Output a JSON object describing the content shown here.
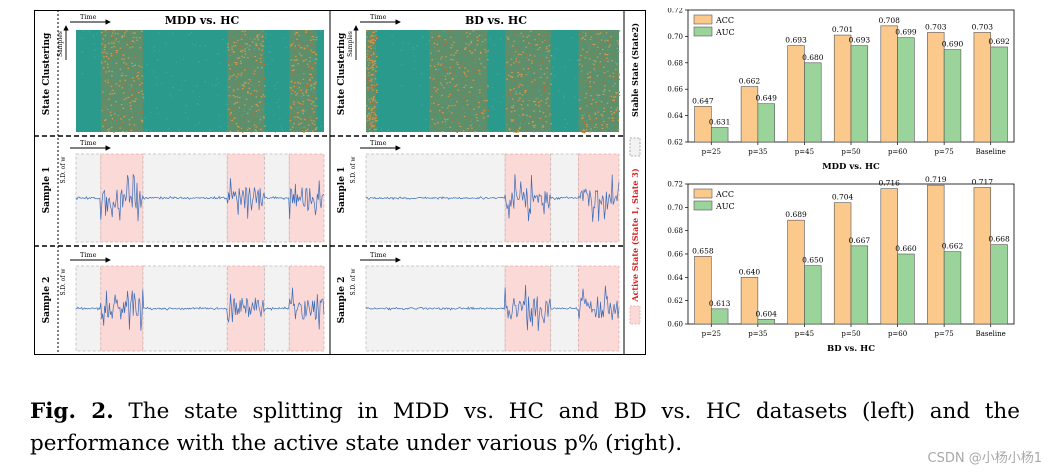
{
  "left": {
    "row_labels": [
      "State Clustering",
      "Sample 1",
      "Sample 2"
    ],
    "panel_titles": [
      "MDD vs. HC",
      "BD vs. HC"
    ],
    "axis_time": "Time",
    "axis_samples": "Samples",
    "axis_sd": "S.D. of w",
    "legend_stable": "Stable State (State2)",
    "legend_active": "Active State (State 1, State 3)",
    "colors": {
      "teal": "#2a9a8d",
      "active_fill": "#fbd9d6",
      "stable_fill": "#f2f2f2",
      "signal": "#3b6db8"
    }
  },
  "chart_data": [
    {
      "type": "bar",
      "title": "MDD vs. HC",
      "categories": [
        "p=25",
        "p=35",
        "p=45",
        "p=50",
        "p=60",
        "p=75",
        "Baseline"
      ],
      "series": [
        {
          "name": "ACC",
          "values": [
            0.647,
            0.662,
            0.693,
            0.701,
            0.708,
            0.703,
            0.703
          ],
          "labels": [
            "0.647",
            "0.662",
            "0.693",
            "0.701",
            "0.708",
            "0.703",
            "0.703"
          ],
          "color": "#fbc98c"
        },
        {
          "name": "AUC",
          "values": [
            0.631,
            0.649,
            0.68,
            0.693,
            0.699,
            0.69,
            0.692
          ],
          "labels": [
            "0.631",
            "0.649",
            "0.680",
            "0.693",
            "0.699",
            "0.690",
            "0.692"
          ],
          "color": "#9bd49a"
        }
      ],
      "ylim": [
        0.62,
        0.72
      ],
      "yticks": [
        "0.62",
        "0.64",
        "0.66",
        "0.68",
        "0.70",
        "0.72"
      ],
      "legend": "top-left"
    },
    {
      "type": "bar",
      "title": "BD vs. HC",
      "categories": [
        "p=25",
        "p=35",
        "p=45",
        "p=50",
        "p=60",
        "p=75",
        "Baseline"
      ],
      "series": [
        {
          "name": "ACC",
          "values": [
            0.658,
            0.64,
            0.689,
            0.704,
            0.716,
            0.719,
            0.717
          ],
          "labels": [
            "0.658",
            "0.640",
            "0.689",
            "0.704",
            "0.716",
            "0.719",
            "0.717"
          ],
          "color": "#fbc98c"
        },
        {
          "name": "AUC",
          "values": [
            0.613,
            0.604,
            0.65,
            0.667,
            0.66,
            0.662,
            0.668
          ],
          "labels": [
            "0.613",
            "0.604",
            "0.650",
            "0.667",
            "0.660",
            "0.662",
            "0.668"
          ],
          "color": "#9bd49a"
        }
      ],
      "ylim": [
        0.6,
        0.72
      ],
      "yticks": [
        "0.60",
        "0.62",
        "0.64",
        "0.66",
        "0.68",
        "0.70",
        "0.72"
      ],
      "legend": "top-left"
    }
  ],
  "caption": {
    "label": "Fig. 2.",
    "text": " The state splitting in MDD vs. HC and BD vs. HC datasets (left) and the performance with the active state under various p% (right)."
  },
  "watermark": "CSDN @小杨小杨1"
}
